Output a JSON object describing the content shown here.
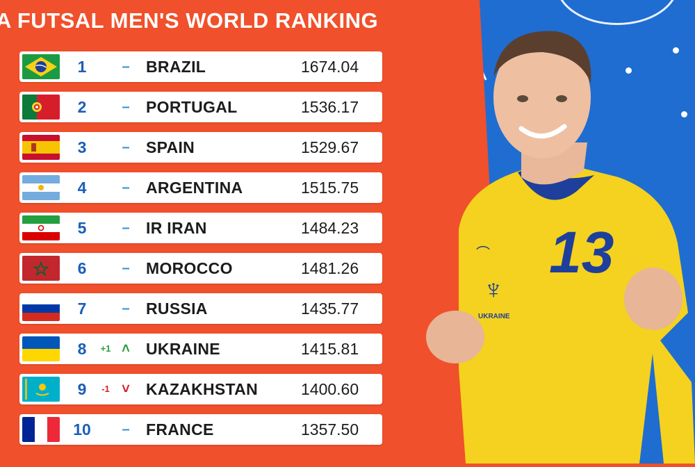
{
  "title": "A FUTSAL MEN'S WORLD RANKING",
  "colors": {
    "background": "#f0502b",
    "court": "#1f6dd1",
    "rank": "#1b5fb8",
    "up": "#2a9d3c",
    "down": "#d21f2a",
    "jersey": "#f4d21f",
    "jersey_trim": "#1e3f9b"
  },
  "rankings": [
    {
      "rank": "1",
      "team": "BRAZIL",
      "points": "1674.04",
      "move": "",
      "trend": "–",
      "trend_dir": "same",
      "flag": "brazil-flag"
    },
    {
      "rank": "2",
      "team": "PORTUGAL",
      "points": "1536.17",
      "move": "",
      "trend": "–",
      "trend_dir": "same",
      "flag": "portugal-flag"
    },
    {
      "rank": "3",
      "team": "SPAIN",
      "points": "1529.67",
      "move": "",
      "trend": "–",
      "trend_dir": "same",
      "flag": "spain-flag"
    },
    {
      "rank": "4",
      "team": "ARGENTINA",
      "points": "1515.75",
      "move": "",
      "trend": "–",
      "trend_dir": "same",
      "flag": "argentina-flag"
    },
    {
      "rank": "5",
      "team": "IR IRAN",
      "points": "1484.23",
      "move": "",
      "trend": "–",
      "trend_dir": "same",
      "flag": "iran-flag"
    },
    {
      "rank": "6",
      "team": "MOROCCO",
      "points": "1481.26",
      "move": "",
      "trend": "–",
      "trend_dir": "same",
      "flag": "morocco-flag"
    },
    {
      "rank": "7",
      "team": "RUSSIA",
      "points": "1435.77",
      "move": "",
      "trend": "–",
      "trend_dir": "same",
      "flag": "russia-flag"
    },
    {
      "rank": "8",
      "team": "UKRAINE",
      "points": "1415.81",
      "move": "+1",
      "trend": "˄",
      "trend_dir": "up",
      "flag": "ukraine-flag"
    },
    {
      "rank": "9",
      "team": "KAZAKHSTAN",
      "points": "1400.60",
      "move": "-1",
      "trend": "˅",
      "trend_dir": "down",
      "flag": "kazakhstan-flag"
    },
    {
      "rank": "10",
      "team": "FRANCE",
      "points": "1357.50",
      "move": "",
      "trend": "–",
      "trend_dir": "same",
      "flag": "france-flag"
    }
  ],
  "player": {
    "jersey_number": "13",
    "crest_text": "UKRAINE"
  }
}
